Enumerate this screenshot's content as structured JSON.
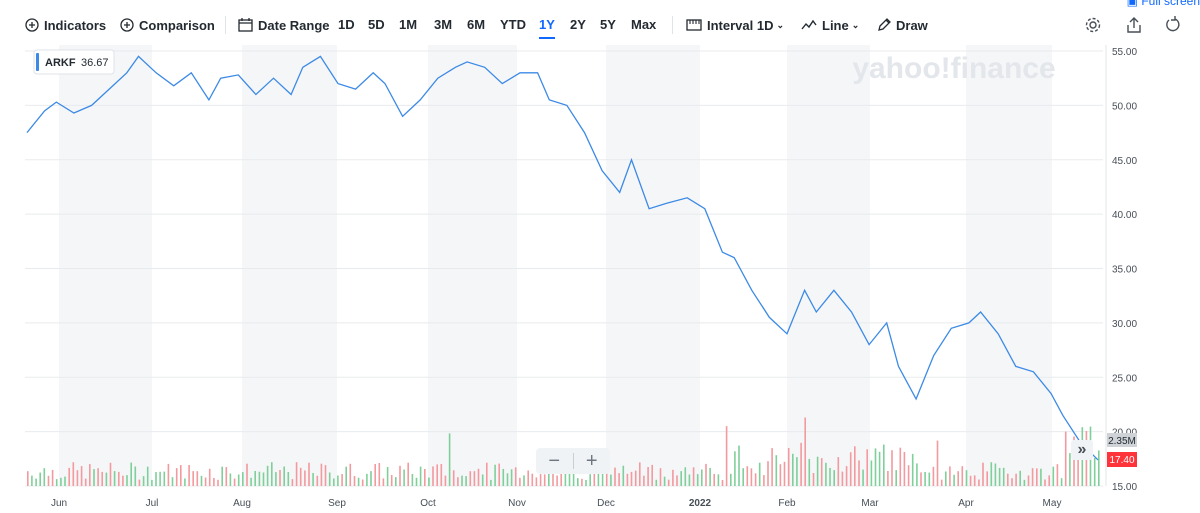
{
  "toolbar": {
    "indicators_label": "Indicators",
    "comparison_label": "Comparison",
    "date_range_label": "Date Range",
    "ranges": [
      "1D",
      "5D",
      "1M",
      "3M",
      "6M",
      "YTD",
      "1Y",
      "2Y",
      "5Y",
      "Max"
    ],
    "active_range": "1Y",
    "interval_label": "Interval",
    "interval_value": "1D",
    "chart_type_label": "Line",
    "draw_label": "Draw",
    "fullscreen_label": "Full screen"
  },
  "watermark": "yahoo!finance",
  "zoom": {
    "minus": "−",
    "plus": "+"
  },
  "collapse_glyph": "»",
  "chart_data": {
    "type": "line",
    "ticker": "ARKF",
    "series_value_label": "36.67",
    "last_price_label": "17.40",
    "volume_label": "2.35M",
    "line_color": "#3c8ae6",
    "ylim": [
      15,
      55
    ],
    "yticks": [
      "55.00",
      "50.00",
      "45.00",
      "40.00",
      "35.00",
      "30.00",
      "25.00",
      "20.00",
      "15.00"
    ],
    "xticks": [
      "Jun",
      "Jul",
      "Aug",
      "Sep",
      "Oct",
      "Nov",
      "Dec",
      "2022",
      "Feb",
      "Mar",
      "Apr",
      "May"
    ],
    "grid": true,
    "dates": [
      "2021-05-18",
      "2021-05-24",
      "2021-05-28",
      "2021-06-03",
      "2021-06-09",
      "2021-06-15",
      "2021-06-21",
      "2021-06-25",
      "2021-07-01",
      "2021-07-07",
      "2021-07-13",
      "2021-07-19",
      "2021-07-23",
      "2021-07-29",
      "2021-08-04",
      "2021-08-10",
      "2021-08-16",
      "2021-08-20",
      "2021-08-26",
      "2021-09-01",
      "2021-09-07",
      "2021-09-13",
      "2021-09-17",
      "2021-09-23",
      "2021-09-29",
      "2021-10-05",
      "2021-10-11",
      "2021-10-15",
      "2021-10-21",
      "2021-10-27",
      "2021-11-02",
      "2021-11-08",
      "2021-11-12",
      "2021-11-18",
      "2021-11-24",
      "2021-11-30",
      "2021-12-06",
      "2021-12-10",
      "2021-12-16",
      "2021-12-22",
      "2021-12-29",
      "2022-01-04",
      "2022-01-10",
      "2022-01-14",
      "2022-01-20",
      "2022-01-26",
      "2022-02-01",
      "2022-02-07",
      "2022-02-11",
      "2022-02-17",
      "2022-02-23",
      "2022-03-01",
      "2022-03-07",
      "2022-03-11",
      "2022-03-17",
      "2022-03-23",
      "2022-03-29",
      "2022-04-04",
      "2022-04-08",
      "2022-04-14",
      "2022-04-20",
      "2022-04-26",
      "2022-05-02",
      "2022-05-06",
      "2022-05-12",
      "2022-05-18"
    ],
    "prices": [
      47.5,
      49.5,
      50.3,
      49.3,
      50.0,
      51.5,
      53.0,
      54.5,
      53.0,
      51.8,
      53.0,
      50.5,
      52.5,
      52.8,
      51.0,
      52.5,
      51.0,
      53.5,
      54.5,
      52.0,
      51.5,
      53.0,
      52.0,
      49.0,
      50.5,
      52.5,
      53.5,
      54.0,
      53.5,
      52.0,
      53.0,
      53.0,
      50.5,
      50.0,
      47.5,
      44.0,
      42.0,
      45.0,
      40.5,
      41.0,
      41.5,
      40.5,
      36.5,
      36.0,
      33.0,
      30.5,
      29.0,
      33.0,
      31.0,
      33.0,
      31.0,
      28.0,
      30.0,
      26.0,
      23.0,
      27.0,
      29.5,
      30.0,
      31.0,
      29.0,
      26.0,
      25.5,
      23.5,
      21.5,
      19.0,
      17.4
    ],
    "volume_bars": 260,
    "volume_max_label": "2.35M"
  }
}
